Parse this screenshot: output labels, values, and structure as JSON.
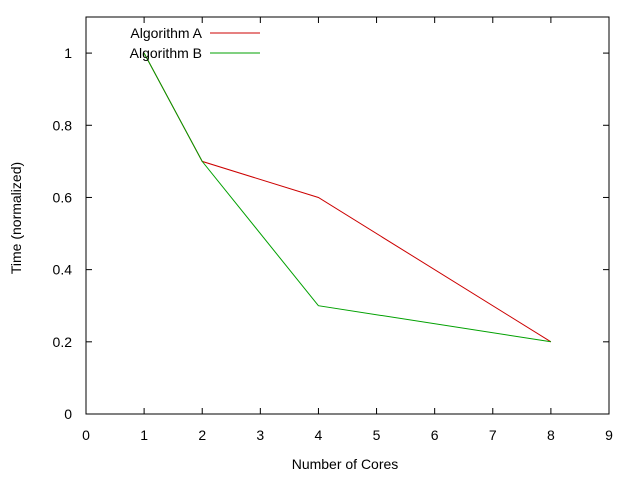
{
  "chart_data": {
    "type": "line",
    "title": "",
    "xlabel": "Number of Cores",
    "ylabel": "Time (normalized)",
    "xlim": [
      0,
      9
    ],
    "ylim": [
      0,
      1.1
    ],
    "x_ticks": [
      0,
      1,
      2,
      3,
      4,
      5,
      6,
      7,
      8,
      9
    ],
    "y_ticks": [
      0,
      0.2,
      0.4,
      0.6,
      0.8,
      1
    ],
    "x_tick_labels": [
      "0",
      "1",
      "2",
      "3",
      "4",
      "5",
      "6",
      "7",
      "8",
      "9"
    ],
    "y_tick_labels": [
      "0",
      "0.2",
      "0.4",
      "0.6",
      "0.8",
      "1"
    ],
    "grid": false,
    "legend_position": "top-left",
    "series": [
      {
        "name": "Algorithm A",
        "color": "#cc0000",
        "points": [
          {
            "x": 1,
            "y": 1.0
          },
          {
            "x": 2,
            "y": 0.7
          },
          {
            "x": 4,
            "y": 0.6
          },
          {
            "x": 8,
            "y": 0.2
          }
        ]
      },
      {
        "name": "Algorithm B",
        "color": "#00a000",
        "points": [
          {
            "x": 1,
            "y": 1.0
          },
          {
            "x": 2,
            "y": 0.7
          },
          {
            "x": 4,
            "y": 0.3
          },
          {
            "x": 8,
            "y": 0.2
          }
        ]
      }
    ]
  }
}
